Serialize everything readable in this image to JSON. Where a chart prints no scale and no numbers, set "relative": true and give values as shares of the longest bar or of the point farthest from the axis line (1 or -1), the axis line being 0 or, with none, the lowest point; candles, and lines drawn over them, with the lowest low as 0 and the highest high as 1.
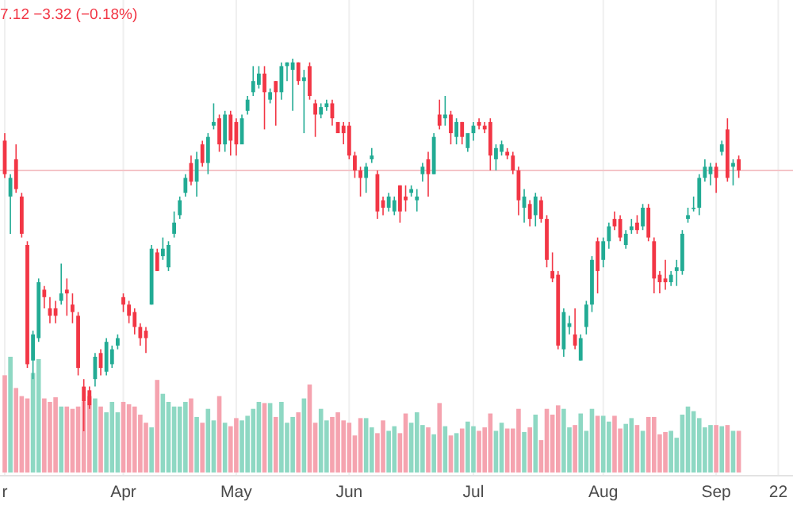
{
  "chart_data": [
    {
      "type": "candlestick",
      "relative": true,
      "grid": "x",
      "annotations": [
        "7.12  −3.32 (−0.18%)"
      ],
      "ref_lines": [
        {
          "axis": "y",
          "value": 0.7,
          "color": "#f4c4c8"
        }
      ],
      "categories": [
        "r",
        null,
        null,
        null,
        null,
        null,
        null,
        null,
        null,
        null,
        null,
        null,
        null,
        null,
        null,
        null,
        null,
        null,
        null,
        null,
        null,
        "Apr",
        null,
        null,
        null,
        null,
        null,
        null,
        null,
        null,
        null,
        null,
        null,
        null,
        null,
        null,
        null,
        null,
        null,
        null,
        null,
        "May",
        null,
        null,
        null,
        null,
        null,
        null,
        null,
        null,
        null,
        null,
        null,
        null,
        null,
        null,
        null,
        null,
        null,
        null,
        null,
        "Jun",
        null,
        null,
        null,
        null,
        null,
        null,
        null,
        null,
        null,
        null,
        null,
        null,
        null,
        null,
        null,
        null,
        null,
        null,
        null,
        null,
        null,
        "Jul",
        null,
        null,
        null,
        null,
        null,
        null,
        null,
        null,
        null,
        null,
        null,
        null,
        null,
        null,
        null,
        null,
        null,
        null,
        null,
        null,
        null,
        null,
        "Aug",
        null,
        null,
        null,
        null,
        null,
        null,
        null,
        null,
        null,
        null,
        null,
        null,
        null,
        null,
        null,
        null,
        null,
        null,
        null,
        "Sep",
        null,
        null,
        null,
        null,
        null,
        null,
        null,
        null,
        null,
        null,
        "22"
      ],
      "ohlc": [
        [
          0.78,
          0.8,
          0.68,
          0.69
        ],
        [
          0.63,
          0.69,
          0.53,
          0.68
        ],
        [
          0.73,
          0.77,
          0.64,
          0.65
        ],
        [
          0.63,
          0.64,
          0.52,
          0.53
        ],
        [
          0.5,
          0.51,
          0.17,
          0.18
        ],
        [
          0.19,
          0.27,
          0.14,
          0.26
        ],
        [
          0.25,
          0.41,
          0.24,
          0.4
        ],
        [
          0.38,
          0.39,
          0.33,
          0.36
        ],
        [
          0.33,
          0.36,
          0.29,
          0.31
        ],
        [
          0.33,
          0.35,
          0.29,
          0.31
        ],
        [
          0.35,
          0.45,
          0.34,
          0.37
        ],
        [
          0.38,
          0.41,
          0.31,
          0.37
        ],
        [
          0.34,
          0.37,
          0.29,
          0.32
        ],
        [
          0.31,
          0.32,
          0.15,
          0.17
        ],
        [
          0.12,
          0.14,
          0,
          0.08
        ],
        [
          0.11,
          0.12,
          0.06,
          0.07
        ],
        [
          0.14,
          0.21,
          0.12,
          0.2
        ],
        [
          0.21,
          0.22,
          0.15,
          0.17
        ],
        [
          0.16,
          0.25,
          0.15,
          0.24
        ],
        [
          0.18,
          0.23,
          0.17,
          0.22
        ],
        [
          0.23,
          0.26,
          0.22,
          0.25
        ],
        [
          0.36,
          0.37,
          0.32,
          0.34
        ],
        [
          0.34,
          0.35,
          0.29,
          0.31
        ],
        [
          0.32,
          0.33,
          0.26,
          0.28
        ],
        [
          0.28,
          0.29,
          0.23,
          0.25
        ],
        [
          0.27,
          0.28,
          0.21,
          0.25
        ],
        [
          0.34,
          0.5,
          0.34,
          0.49
        ],
        [
          0.48,
          0.49,
          0.43,
          0.43
        ],
        [
          0.47,
          0.52,
          0.46,
          0.49
        ],
        [
          0.44,
          0.51,
          0.43,
          0.5
        ],
        [
          0.53,
          0.59,
          0.52,
          0.56
        ],
        [
          0.58,
          0.63,
          0.57,
          0.62
        ],
        [
          0.64,
          0.69,
          0.63,
          0.68
        ],
        [
          0.72,
          0.74,
          0.66,
          0.67
        ],
        [
          0.67,
          0.75,
          0.63,
          0.73
        ],
        [
          0.77,
          0.78,
          0.71,
          0.72
        ],
        [
          0.72,
          0.8,
          0.69,
          0.79
        ],
        [
          0.82,
          0.88,
          0.81,
          0.83
        ],
        [
          0.84,
          0.85,
          0.75,
          0.77
        ],
        [
          0.77,
          0.86,
          0.75,
          0.85
        ],
        [
          0.85,
          0.86,
          0.74,
          0.78
        ],
        [
          0.83,
          0.84,
          0.74,
          0.77
        ],
        [
          0.77,
          0.85,
          0.77,
          0.84
        ],
        [
          0.86,
          0.9,
          0.85,
          0.89
        ],
        [
          0.91,
          0.98,
          0.9,
          0.94
        ],
        [
          0.93,
          0.98,
          0.92,
          0.96
        ],
        [
          0.96,
          0.98,
          0.81,
          0.91
        ],
        [
          0.89,
          0.92,
          0.88,
          0.91
        ],
        [
          0.94,
          0.94,
          0.82,
          0.91
        ],
        [
          0.91,
          0.99,
          0.89,
          0.98
        ],
        [
          0.98,
          0.99,
          0.94,
          0.99
        ],
        [
          0.97,
          1,
          0.86,
          0.99
        ],
        [
          0.99,
          0.99,
          0.93,
          0.94
        ],
        [
          0.94,
          0.97,
          0.8,
          0.95
        ],
        [
          0.98,
          0.99,
          0.89,
          0.9
        ],
        [
          0.88,
          0.89,
          0.79,
          0.85
        ],
        [
          0.85,
          0.88,
          0.84,
          0.87
        ],
        [
          0.87,
          0.89,
          0.86,
          0.88
        ],
        [
          0.88,
          0.89,
          0.82,
          0.84
        ],
        [
          0.83,
          0.83,
          0.8,
          0.8
        ],
        [
          0.82,
          0.83,
          0.77,
          0.8
        ],
        [
          0.82,
          0.83,
          0.73,
          0.74
        ],
        [
          0.74,
          0.75,
          0.68,
          0.7
        ],
        [
          0.7,
          0.71,
          0.63,
          0.68
        ],
        [
          0.68,
          0.72,
          0.64,
          0.71
        ],
        [
          0.73,
          0.76,
          0.72,
          0.74
        ],
        [
          0.69,
          0.7,
          0.57,
          0.59
        ],
        [
          0.62,
          0.63,
          0.58,
          0.6
        ],
        [
          0.6,
          0.64,
          0.59,
          0.63
        ],
        [
          0.59,
          0.63,
          0.58,
          0.62
        ],
        [
          0.66,
          0.66,
          0.56,
          0.59
        ],
        [
          0.63,
          0.66,
          0.59,
          0.62
        ],
        [
          0.64,
          0.66,
          0.63,
          0.65
        ],
        [
          0.62,
          0.65,
          0.59,
          0.63
        ],
        [
          0.69,
          0.72,
          0.67,
          0.71
        ],
        [
          0.73,
          0.75,
          0.63,
          0.69
        ],
        [
          0.69,
          0.8,
          0.69,
          0.79
        ],
        [
          0.85,
          0.89,
          0.81,
          0.82
        ],
        [
          0.84,
          0.9,
          0.82,
          0.85
        ],
        [
          0.85,
          0.86,
          0.77,
          0.8
        ],
        [
          0.79,
          0.84,
          0.77,
          0.83
        ],
        [
          0.83,
          0.83,
          0.77,
          0.79
        ],
        [
          0.76,
          0.8,
          0.75,
          0.8
        ],
        [
          0.8,
          0.83,
          0.78,
          0.82
        ],
        [
          0.83,
          0.84,
          0.81,
          0.82
        ],
        [
          0.82,
          0.83,
          0.8,
          0.81
        ],
        [
          0.83,
          0.84,
          0.7,
          0.74
        ],
        [
          0.73,
          0.77,
          0.7,
          0.76
        ],
        [
          0.75,
          0.78,
          0.74,
          0.77
        ],
        [
          0.75,
          0.76,
          0.73,
          0.74
        ],
        [
          0.74,
          0.75,
          0.69,
          0.7
        ],
        [
          0.7,
          0.71,
          0.58,
          0.62
        ],
        [
          0.6,
          0.65,
          0.56,
          0.63
        ],
        [
          0.61,
          0.62,
          0.55,
          0.57
        ],
        [
          0.58,
          0.64,
          0.55,
          0.63
        ],
        [
          0.62,
          0.63,
          0.56,
          0.57
        ],
        [
          0.57,
          0.58,
          0.44,
          0.46
        ],
        [
          0.43,
          0.48,
          0.4,
          0.41
        ],
        [
          0.42,
          0.43,
          0.22,
          0.23
        ],
        [
          0.22,
          0.33,
          0.2,
          0.32
        ],
        [
          0.28,
          0.31,
          0.26,
          0.29
        ],
        [
          0.26,
          0.33,
          0.22,
          0.23
        ],
        [
          0.19,
          0.26,
          0.19,
          0.25
        ],
        [
          0.28,
          0.35,
          0.26,
          0.34
        ],
        [
          0.34,
          0.47,
          0.32,
          0.46
        ],
        [
          0.51,
          0.52,
          0.37,
          0.43
        ],
        [
          0.46,
          0.52,
          0.44,
          0.51
        ],
        [
          0.51,
          0.56,
          0.49,
          0.55
        ],
        [
          0.57,
          0.59,
          0.54,
          0.55
        ],
        [
          0.57,
          0.58,
          0.51,
          0.52
        ],
        [
          0.5,
          0.54,
          0.49,
          0.53
        ],
        [
          0.54,
          0.57,
          0.53,
          0.55
        ],
        [
          0.56,
          0.58,
          0.53,
          0.54
        ],
        [
          0.55,
          0.61,
          0.54,
          0.6
        ],
        [
          0.6,
          0.61,
          0.51,
          0.52
        ],
        [
          0.51,
          0.52,
          0.37,
          0.41
        ],
        [
          0.42,
          0.43,
          0.37,
          0.4
        ],
        [
          0.41,
          0.46,
          0.38,
          0.4
        ],
        [
          0.4,
          0.43,
          0.39,
          0.42
        ],
        [
          0.43,
          0.46,
          0.39,
          0.44
        ],
        [
          0.43,
          0.54,
          0.42,
          0.53
        ],
        [
          0.57,
          0.6,
          0.56,
          0.58
        ],
        [
          0.6,
          0.63,
          0.59,
          0.6
        ],
        [
          0.6,
          0.69,
          0.58,
          0.68
        ],
        [
          0.68,
          0.73,
          0.67,
          0.71
        ],
        [
          0.69,
          0.72,
          0.66,
          0.71
        ],
        [
          0.71,
          0.72,
          0.64,
          0.68
        ],
        [
          0.75,
          0.78,
          0.74,
          0.77
        ],
        [
          0.81,
          0.84,
          0.67,
          0.68
        ],
        [
          0.71,
          0.73,
          0.66,
          0.72
        ],
        [
          0.73,
          0.74,
          0.68,
          0.7
        ],
        null,
        null,
        null,
        null,
        null,
        null,
        null
      ],
      "colors": [
        "#f23645",
        "#22ab94",
        "#f23645",
        "#f23645",
        "#f23645",
        "#22ab94",
        "#22ab94",
        "#f23645",
        "#f23645",
        "#f23645",
        "#22ab94",
        "#f23645",
        "#f23645",
        "#f23645",
        "#f23645",
        "#f23645",
        "#22ab94",
        "#f23645",
        "#22ab94",
        "#22ab94",
        "#22ab94",
        "#f23645",
        "#f23645",
        "#f23645",
        "#f23645",
        "#f23645",
        "#22ab94",
        "#f23645",
        "#22ab94",
        "#22ab94",
        "#22ab94",
        "#22ab94",
        "#22ab94",
        "#f23645",
        "#22ab94",
        "#f23645",
        "#22ab94",
        "#22ab94",
        "#f23645",
        "#22ab94",
        "#f23645",
        "#f23645",
        "#22ab94",
        "#22ab94",
        "#22ab94",
        "#22ab94",
        "#f23645",
        "#22ab94",
        "#f23645",
        "#22ab94",
        "#22ab94",
        "#22ab94",
        "#f23645",
        "#22ab94",
        "#f23645",
        "#f23645",
        "#22ab94",
        "#22ab94",
        "#f23645",
        "#f23645",
        "#f23645",
        "#f23645",
        "#f23645",
        "#f23645",
        "#22ab94",
        "#22ab94",
        "#f23645",
        "#f23645",
        "#22ab94",
        "#22ab94",
        "#f23645",
        "#f23645",
        "#22ab94",
        "#22ab94",
        "#22ab94",
        "#f23645",
        "#22ab94",
        "#f23645",
        "#22ab94",
        "#f23645",
        "#22ab94",
        "#f23645",
        "#22ab94",
        "#22ab94",
        "#f23645",
        "#f23645",
        "#f23645",
        "#22ab94",
        "#22ab94",
        "#f23645",
        "#f23645",
        "#f23645",
        "#22ab94",
        "#f23645",
        "#22ab94",
        "#f23645",
        "#f23645",
        "#f23645",
        "#f23645",
        "#22ab94",
        "#22ab94",
        "#f23645",
        "#22ab94",
        "#22ab94",
        "#22ab94",
        "#f23645",
        "#22ab94",
        "#22ab94",
        "#f23645",
        "#f23645",
        "#22ab94",
        "#22ab94",
        "#f23645",
        "#22ab94",
        "#f23645",
        "#f23645",
        "#f23645",
        "#f23645",
        "#22ab94",
        "#22ab94",
        "#22ab94",
        "#22ab94",
        "#22ab94",
        "#22ab94",
        "#22ab94",
        "#22ab94",
        "#f23645",
        "#22ab94",
        "#f23645",
        "#22ab94",
        "#f23645",
        null,
        null,
        null,
        null,
        null,
        null,
        null
      ]
    },
    {
      "type": "bar",
      "relative": true,
      "categories": [
        null,
        null,
        null,
        null,
        null,
        null,
        null,
        null,
        null,
        null,
        null,
        null,
        null,
        null,
        null,
        null,
        null,
        null,
        null,
        null,
        null,
        null,
        null,
        null,
        null,
        null,
        null,
        null,
        null,
        null,
        null,
        null,
        null,
        null,
        null,
        null,
        null,
        null,
        null,
        null,
        null,
        null,
        null,
        null,
        null,
        null,
        null,
        null,
        null,
        null,
        null,
        null,
        null,
        null,
        null,
        null,
        null,
        null,
        null,
        null,
        null,
        null,
        null,
        null,
        null,
        null,
        null,
        null,
        null,
        null,
        null,
        null,
        null,
        null,
        null,
        null,
        null,
        null,
        null,
        null,
        null,
        null,
        null,
        null,
        null,
        null,
        null,
        null,
        null,
        null,
        null,
        null,
        null,
        null,
        null,
        null,
        null,
        null,
        null,
        null,
        null,
        null,
        null,
        null,
        null,
        null,
        null,
        null,
        null,
        null,
        null,
        null,
        null,
        null,
        null,
        null,
        null,
        null,
        null,
        null,
        null,
        null,
        null,
        null,
        null,
        null,
        null,
        null,
        null,
        null,
        null,
        null,
        null,
        null,
        null,
        null,
        null,
        null
      ],
      "values": [
        0.84,
        1,
        0.73,
        0.66,
        0.64,
        0.86,
        0.98,
        0.64,
        0.61,
        0.65,
        0.57,
        0.57,
        0.55,
        0.57,
        0.61,
        0.66,
        0.64,
        0.57,
        0.52,
        0.61,
        0.52,
        0.61,
        0.59,
        0.57,
        0.5,
        0.43,
        0.39,
        0.8,
        0.68,
        0.61,
        0.57,
        0.57,
        0.61,
        0.64,
        0.48,
        0.43,
        0.55,
        0.45,
        0.66,
        0.43,
        0.4,
        0.47,
        0.45,
        0.49,
        0.55,
        0.61,
        0.6,
        0.6,
        0.48,
        0.61,
        0.43,
        0.48,
        0.52,
        0.64,
        0.76,
        0.43,
        0.55,
        0.45,
        0.48,
        0.52,
        0.45,
        0.43,
        0.32,
        0.47,
        0.47,
        0.39,
        0.34,
        0.45,
        0.36,
        0.4,
        0.34,
        0.51,
        0.43,
        0.52,
        0.41,
        0.39,
        0.33,
        0.6,
        0.4,
        0.32,
        0.34,
        0.38,
        0.44,
        0.4,
        0.36,
        0.39,
        0.51,
        0.36,
        0.43,
        0.38,
        0.38,
        0.55,
        0.35,
        0.39,
        0.5,
        0.28,
        0.55,
        0.5,
        0.58,
        0.55,
        0.39,
        0.41,
        0.51,
        0.36,
        0.55,
        0.49,
        0.49,
        0.44,
        0.49,
        0.38,
        0.42,
        0.47,
        0.41,
        0.36,
        0.48,
        0.48,
        0.33,
        0.35,
        0.36,
        0.3,
        0.5,
        0.57,
        0.53,
        0.47,
        0.39,
        0.41,
        0.41,
        0.4,
        0.41,
        0.36,
        0.36,
        null,
        null,
        null,
        null,
        null,
        null,
        null
      ],
      "colors": [
        "#f5a3af",
        "#8ed8c3",
        "#f5a3af",
        "#f5a3af",
        "#f5a3af",
        "#8ed8c3",
        "#8ed8c3",
        "#f5a3af",
        "#f5a3af",
        "#f5a3af",
        "#8ed8c3",
        "#f5a3af",
        "#f5a3af",
        "#f5a3af",
        "#f5a3af",
        "#f5a3af",
        "#8ed8c3",
        "#f5a3af",
        "#8ed8c3",
        "#8ed8c3",
        "#8ed8c3",
        "#f5a3af",
        "#f5a3af",
        "#f5a3af",
        "#f5a3af",
        "#f5a3af",
        "#8ed8c3",
        "#f5a3af",
        "#8ed8c3",
        "#8ed8c3",
        "#8ed8c3",
        "#8ed8c3",
        "#8ed8c3",
        "#f5a3af",
        "#8ed8c3",
        "#f5a3af",
        "#8ed8c3",
        "#8ed8c3",
        "#f5a3af",
        "#8ed8c3",
        "#f5a3af",
        "#f5a3af",
        "#8ed8c3",
        "#8ed8c3",
        "#8ed8c3",
        "#8ed8c3",
        "#f5a3af",
        "#8ed8c3",
        "#f5a3af",
        "#8ed8c3",
        "#8ed8c3",
        "#8ed8c3",
        "#f5a3af",
        "#8ed8c3",
        "#f5a3af",
        "#f5a3af",
        "#8ed8c3",
        "#8ed8c3",
        "#f5a3af",
        "#f5a3af",
        "#f5a3af",
        "#f5a3af",
        "#f5a3af",
        "#f5a3af",
        "#8ed8c3",
        "#8ed8c3",
        "#f5a3af",
        "#f5a3af",
        "#8ed8c3",
        "#8ed8c3",
        "#f5a3af",
        "#f5a3af",
        "#8ed8c3",
        "#8ed8c3",
        "#8ed8c3",
        "#f5a3af",
        "#8ed8c3",
        "#f5a3af",
        "#8ed8c3",
        "#f5a3af",
        "#8ed8c3",
        "#f5a3af",
        "#8ed8c3",
        "#8ed8c3",
        "#f5a3af",
        "#f5a3af",
        "#f5a3af",
        "#8ed8c3",
        "#8ed8c3",
        "#f5a3af",
        "#f5a3af",
        "#f5a3af",
        "#8ed8c3",
        "#f5a3af",
        "#8ed8c3",
        "#f5a3af",
        "#f5a3af",
        "#f5a3af",
        "#f5a3af",
        "#8ed8c3",
        "#8ed8c3",
        "#f5a3af",
        "#8ed8c3",
        "#8ed8c3",
        "#8ed8c3",
        "#f5a3af",
        "#8ed8c3",
        "#8ed8c3",
        "#f5a3af",
        "#f5a3af",
        "#8ed8c3",
        "#8ed8c3",
        "#f5a3af",
        "#8ed8c3",
        "#f5a3af",
        "#f5a3af",
        "#f5a3af",
        "#f5a3af",
        "#8ed8c3",
        "#8ed8c3",
        "#8ed8c3",
        "#8ed8c3",
        "#8ed8c3",
        "#8ed8c3",
        "#8ed8c3",
        "#8ed8c3",
        "#f5a3af",
        "#8ed8c3",
        "#f5a3af",
        "#8ed8c3",
        "#f5a3af",
        null,
        null,
        null,
        null,
        null,
        null,
        null
      ]
    }
  ]
}
